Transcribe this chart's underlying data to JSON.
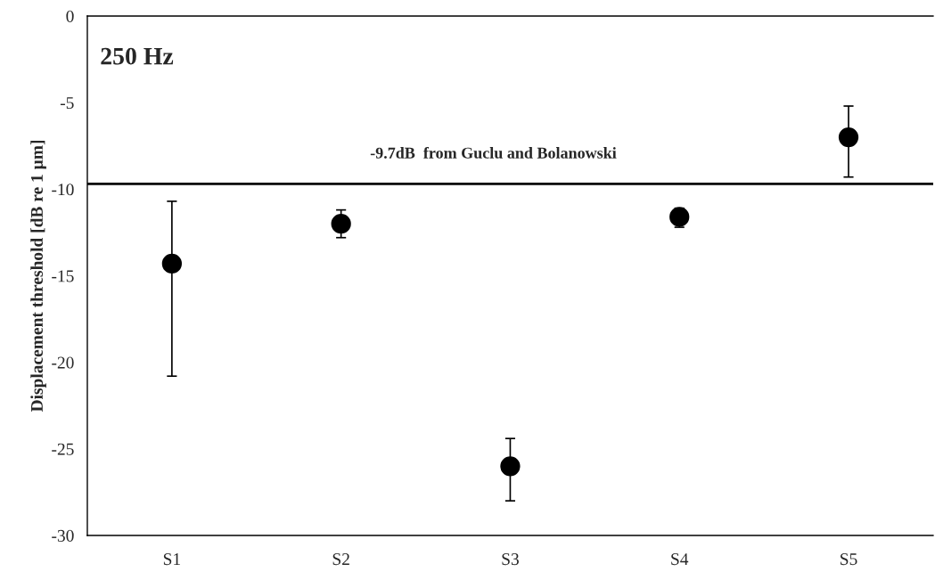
{
  "chart_data": {
    "type": "scatter",
    "ylabel": "Displacement threshold [dB re 1 µm]",
    "categories": [
      "S1",
      "S2",
      "S3",
      "S4",
      "S5"
    ],
    "series": [
      {
        "color": "#000000",
        "values": [
          -14.3,
          -12.0,
          -26.0,
          -11.6,
          -7.0
        ],
        "errors": [
          [
            -20.8,
            -10.7
          ],
          [
            -12.8,
            -11.2
          ],
          [
            -28.0,
            -24.4
          ],
          [
            -12.2,
            -11.1
          ],
          [
            -9.3,
            -5.2
          ]
        ]
      }
    ],
    "marker": "circle",
    "ylim": [
      -30,
      0
    ],
    "yticks": [
      -30,
      -25,
      -20,
      -15,
      -10,
      -5,
      0
    ],
    "ref_lines": [
      {
        "axis": "y",
        "value": -9.7,
        "label": "-9.7dB  from Guclu and Bolanowski",
        "color": "#000000"
      }
    ],
    "annotations": [
      "250 Hz"
    ],
    "grid": false,
    "legend": false
  }
}
